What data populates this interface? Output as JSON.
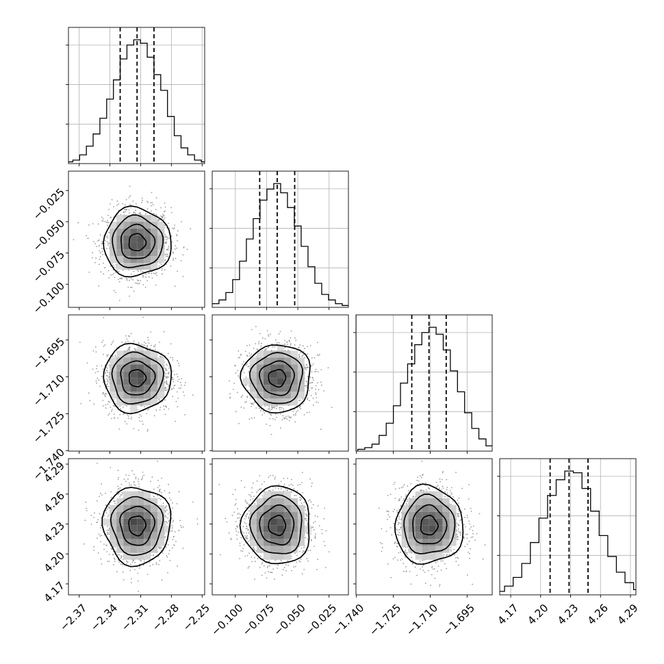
{
  "chart_data": {
    "type": "corner",
    "parameters": [
      {
        "ticks": [
          -2.37,
          -2.34,
          -2.31,
          -2.28,
          -2.25
        ],
        "tick_labels": [
          "−2.37",
          "−2.34",
          "−2.31",
          "−2.28",
          "−2.25"
        ],
        "range": [
          -2.3805,
          -2.2475
        ],
        "mean": -2.3135,
        "std": 0.0165,
        "quantiles": [
          -2.33,
          -2.3135,
          -2.297
        ],
        "hist_counts": [
          1,
          2,
          5,
          10,
          17,
          26,
          37,
          48,
          60,
          68,
          71,
          69,
          61,
          51,
          42,
          27,
          16,
          9,
          5,
          2,
          1
        ]
      },
      {
        "ticks": [
          -0.1,
          -0.075,
          -0.05,
          -0.025
        ],
        "tick_labels": [
          "−0.100",
          "−0.075",
          "−0.050",
          "−0.025"
        ],
        "range": [
          -0.1185,
          -0.0095
        ],
        "mean": -0.0665,
        "std": 0.0137,
        "quantiles": [
          -0.0805,
          -0.0665,
          -0.0525
        ],
        "hist_counts": [
          1,
          2,
          4,
          8,
          15,
          25,
          37,
          48,
          58,
          64,
          67,
          62,
          54,
          44,
          33,
          22,
          13,
          7,
          4,
          2,
          1
        ]
      },
      {
        "ticks": [
          -1.74,
          -1.725,
          -1.71,
          -1.695
        ],
        "tick_labels": [
          "−1.740",
          "−1.725",
          "−1.710",
          "−1.695"
        ],
        "range": [
          -1.7402,
          -1.6848
        ],
        "mean": -1.7105,
        "std": 0.0069,
        "quantiles": [
          -1.7175,
          -1.7105,
          -1.7035
        ],
        "hist_counts": [
          1,
          2,
          4,
          9,
          16,
          26,
          39,
          50,
          61,
          68,
          71,
          67,
          58,
          46,
          34,
          22,
          13,
          7,
          3,
          1
        ]
      },
      {
        "ticks": [
          4.17,
          4.2,
          4.23,
          4.26,
          4.29
        ],
        "tick_labels": [
          "4.17",
          "4.20",
          "4.23",
          "4.26",
          "4.29"
        ],
        "range": [
          4.159,
          4.2955
        ],
        "mean": 4.2285,
        "std": 0.0195,
        "quantiles": [
          4.2095,
          4.2285,
          4.2475
        ],
        "hist_counts": [
          1,
          2,
          5,
          10,
          18,
          30,
          44,
          57,
          66,
          71,
          70,
          61,
          48,
          34,
          22,
          13,
          7,
          3,
          1
        ]
      }
    ],
    "histogram_style": "step",
    "quantile_lines": "dashed",
    "contour_levels": 4,
    "grid": true
  }
}
